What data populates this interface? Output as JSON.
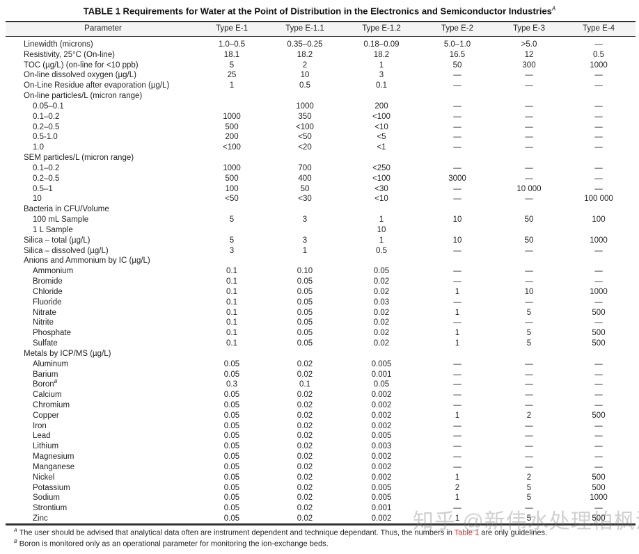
{
  "title": {
    "text": "TABLE 1 Requirements for Water at the Point of Distribution in the Electronics and Semiconductor Industries",
    "sup": "A"
  },
  "columns": [
    "Parameter",
    "Type E-1",
    "Type E-1.1",
    "Type E-1.2",
    "Type E-2",
    "Type E-3",
    "Type E-4"
  ],
  "rows": [
    {
      "label": "Linewidth (microns)",
      "values": [
        "1.0–0.5",
        "0.35–0.25",
        "0.18–0.09",
        "5.0–1.0",
        ">5.0",
        "—"
      ]
    },
    {
      "label": "Resistivity, 25°C (On-line)",
      "values": [
        "18.1",
        "18.2",
        "18.2",
        "16.5",
        "12",
        "0.5"
      ]
    },
    {
      "label": "TOC (µg/L) (on-line for <10 ppb)",
      "values": [
        "5",
        "2",
        "1",
        "50",
        "300",
        "1000"
      ]
    },
    {
      "label": "On-line dissolved oxygen (µg/L)",
      "values": [
        "25",
        "10",
        "3",
        "—",
        "—",
        "—"
      ]
    },
    {
      "label": "On-Line Residue after evaporation (µg/L)",
      "values": [
        "1",
        "0.5",
        "0.1",
        "—",
        "—",
        "—"
      ]
    },
    {
      "label": "On-line particles/L (micron range)",
      "values": [
        "",
        "",
        "",
        "",
        "",
        ""
      ]
    },
    {
      "label": "0.05–0.1",
      "indent": true,
      "values": [
        "",
        "1000",
        "200",
        "—",
        "—",
        "—"
      ]
    },
    {
      "label": "0.1–0.2",
      "indent": true,
      "values": [
        "1000",
        "350",
        "<100",
        "—",
        "—",
        "—"
      ]
    },
    {
      "label": " 0.2–0.5",
      "indent": true,
      "values": [
        "500",
        "<100",
        "<10",
        "—",
        "—",
        "—"
      ]
    },
    {
      "label": "0.5-1.0",
      "indent": true,
      "values": [
        "200",
        "<50",
        "<5",
        "—",
        "—",
        "—"
      ]
    },
    {
      "label": "1.0",
      "indent": true,
      "values": [
        "<100",
        "<20",
        "<1",
        "—",
        "—",
        "—"
      ]
    },
    {
      "label": "SEM particles/L (micron range)",
      "values": [
        "",
        "",
        "",
        "",
        "",
        ""
      ]
    },
    {
      "label": "0.1–0.2",
      "indent": true,
      "values": [
        "1000",
        "700",
        "<250",
        "—",
        "—",
        "—"
      ]
    },
    {
      "label": "0.2–0.5",
      "indent": true,
      "values": [
        "500",
        "400",
        "<100",
        "3000",
        "—",
        "—"
      ]
    },
    {
      "label": "0.5–1",
      "indent": true,
      "values": [
        "100",
        "50",
        "<30",
        "—",
        "10 000",
        "—"
      ]
    },
    {
      "label": "10",
      "indent": true,
      "values": [
        "<50",
        "<30",
        "<10",
        "—",
        "—",
        "100 000"
      ]
    },
    {
      "label": "Bacteria in CFU/Volume",
      "values": [
        "",
        "",
        "",
        "",
        "",
        ""
      ]
    },
    {
      "label": "100 mL Sample",
      "indent": true,
      "values": [
        "5",
        "3",
        "1",
        "10",
        "50",
        "100"
      ]
    },
    {
      "label": "1 L Sample",
      "indent": true,
      "values": [
        "",
        "",
        "10",
        "",
        "",
        ""
      ]
    },
    {
      "label": "Silica – total (µg/L)",
      "values": [
        "5",
        "3",
        "1",
        "10",
        "50",
        "1000"
      ]
    },
    {
      "label": "Silica – dissolved (µg/L)",
      "values": [
        "3",
        "1",
        "0.5",
        "—",
        "—",
        "—"
      ]
    },
    {
      "label": "Anions and Ammonium by IC (µg/L)",
      "values": [
        "",
        "",
        "",
        "",
        "",
        ""
      ]
    },
    {
      "label": "Ammonium",
      "indent": true,
      "values": [
        "0.1",
        "0.10",
        "0.05",
        "—",
        "—",
        "—"
      ]
    },
    {
      "label": "Bromide",
      "indent": true,
      "values": [
        "0.1",
        "0.05",
        "0.02",
        "—",
        "—",
        "—"
      ]
    },
    {
      "label": "Chloride",
      "indent": true,
      "values": [
        "0.1",
        "0.05",
        "0.02",
        "1",
        "10",
        "1000"
      ]
    },
    {
      "label": "Fluoride",
      "indent": true,
      "values": [
        "0.1",
        "0.05",
        "0.03",
        "—",
        "—",
        "—"
      ]
    },
    {
      "label": "Nitrate",
      "indent": true,
      "values": [
        "0.1",
        "0.05",
        "0.02",
        "1",
        "5",
        "500"
      ]
    },
    {
      "label": "Nitrite",
      "indent": true,
      "values": [
        "0.1",
        "0.05",
        "0.02",
        "—",
        "—",
        "—"
      ]
    },
    {
      "label": "Phosphate",
      "indent": true,
      "values": [
        "0.1",
        "0.05",
        "0.02",
        "1",
        "5",
        "500"
      ]
    },
    {
      "label": "Sulfate",
      "indent": true,
      "values": [
        "0.1",
        "0.05",
        "0.02",
        "1",
        "5",
        "500"
      ]
    },
    {
      "label": "Metals by ICP/MS (µg/L)",
      "values": [
        "",
        "",
        "",
        "",
        "",
        ""
      ]
    },
    {
      "label": "Aluminum",
      "indent": true,
      "values": [
        "0.05",
        "0.02",
        "0.005",
        "—",
        "—",
        "—"
      ]
    },
    {
      "label": "Barium",
      "indent": true,
      "values": [
        "0.05",
        "0.02",
        "0.001",
        "—",
        "—",
        "—"
      ]
    },
    {
      "label": "Boron",
      "sup": "B",
      "indent": true,
      "values": [
        "0.3",
        "0.1",
        "0.05",
        "—",
        "—",
        "—"
      ]
    },
    {
      "label": "Calcium",
      "indent": true,
      "values": [
        "0.05",
        "0.02",
        "0.002",
        "—",
        "—",
        "—"
      ]
    },
    {
      "label": "Chromium",
      "indent": true,
      "values": [
        "0.05",
        "0.02",
        "0.002",
        "—",
        "—",
        "—"
      ]
    },
    {
      "label": "Copper",
      "indent": true,
      "values": [
        "0.05",
        "0.02",
        "0.002",
        "1",
        "2",
        "500"
      ]
    },
    {
      "label": "Iron",
      "indent": true,
      "values": [
        "0.05",
        "0.02",
        "0.002",
        "—",
        "—",
        "—"
      ]
    },
    {
      "label": "Lead",
      "indent": true,
      "values": [
        "0.05",
        "0.02",
        "0.005",
        "—",
        "—",
        "—"
      ]
    },
    {
      "label": "Lithium",
      "indent": true,
      "values": [
        "0.05",
        "0.02",
        "0.003",
        "—",
        "—",
        "—"
      ]
    },
    {
      "label": "Magnesium",
      "indent": true,
      "values": [
        "0.05",
        "0.02",
        "0.002",
        "—",
        "—",
        "—"
      ]
    },
    {
      "label": "Manganese",
      "indent": true,
      "values": [
        "0.05",
        "0.02",
        "0.002",
        "—",
        "—",
        "—"
      ]
    },
    {
      "label": "Nickel",
      "indent": true,
      "values": [
        "0.05",
        "0.02",
        "0.002",
        "1",
        "2",
        "500"
      ]
    },
    {
      "label": "Potassium",
      "indent": true,
      "values": [
        "0.05",
        "0.02",
        "0.005",
        "2",
        "5",
        "500"
      ]
    },
    {
      "label": "Sodium",
      "indent": true,
      "values": [
        "0.05",
        "0.02",
        "0.005",
        "1",
        "5",
        "1000"
      ]
    },
    {
      "label": "Strontium",
      "indent": true,
      "values": [
        "0.05",
        "0.02",
        "0.001",
        "—",
        "—",
        "—"
      ]
    },
    {
      "label": "Zinc",
      "indent": true,
      "values": [
        "0.05",
        "0.02",
        "0.002",
        "1",
        "5",
        "500"
      ]
    }
  ],
  "footnotes": {
    "a": {
      "mark": "A",
      "text1": "The user should be advised that analytical data often are instrument dependent and technique dependant. Thus, the numbers in ",
      "link": "Table 1",
      "text2": " are only guidelines."
    },
    "b": {
      "mark": "B",
      "text": "Boron is monitored only as an operational parameter for monitoring the ion-exchange beds."
    }
  },
  "watermark": "知乎 @新伟水处理柏枫汤",
  "colors": {
    "link": "#d22222"
  }
}
